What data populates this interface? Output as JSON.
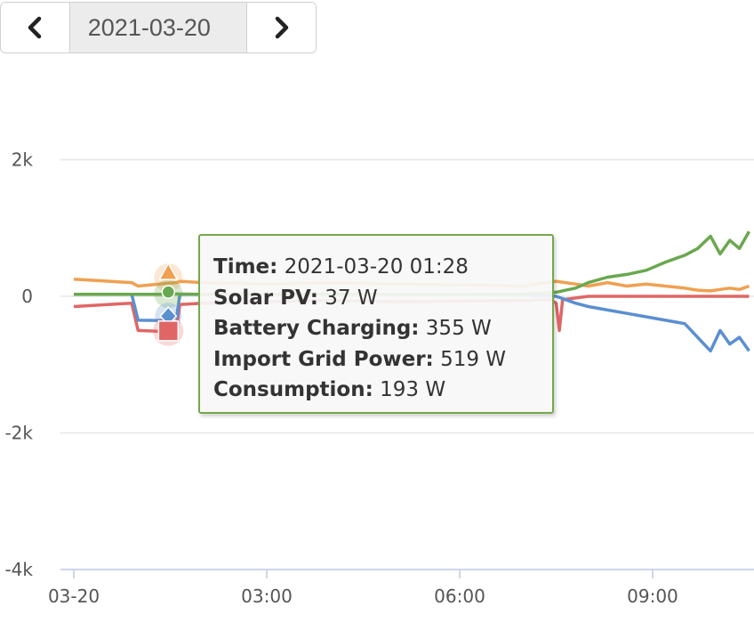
{
  "date_nav": {
    "prev_icon": "chevron-left-icon",
    "date_value": "2021-03-20",
    "next_icon": "chevron-right-icon"
  },
  "colors": {
    "solar": "#6aa84f",
    "battery": "#5b8fd0",
    "grid": "#e06666",
    "consumption": "#f0a050",
    "tooltip_border": "#74a94b",
    "grid_line": "#e6e6e6",
    "axis_line": "#ccd6eb"
  },
  "tooltip": {
    "time_label": "Time:",
    "time_value": "2021-03-20 01:28",
    "solar_label": "Solar PV:",
    "solar_value": "37 W",
    "battery_label": "Battery Charging:",
    "battery_value": "355 W",
    "grid_label": "Import Grid Power:",
    "grid_value": "519 W",
    "consumption_label": "Consumption:",
    "consumption_value": "193 W"
  },
  "chart_data": {
    "type": "line",
    "y_ticks": [
      "2k",
      "0",
      "-2k",
      "-4k"
    ],
    "x_ticks": [
      "03-20",
      "03:00",
      "06:00",
      "09:00"
    ],
    "ylim": [
      -4000,
      2000
    ],
    "xlim_hours": [
      0,
      10.5
    ],
    "grid": true,
    "series": [
      {
        "key": "solar",
        "values": [
          [
            0,
            30
          ],
          [
            1,
            30
          ],
          [
            1.4,
            30
          ],
          [
            1.47,
            37
          ],
          [
            2,
            30
          ],
          [
            3,
            30
          ],
          [
            4,
            30
          ],
          [
            5,
            30
          ],
          [
            6,
            30
          ],
          [
            7,
            30
          ],
          [
            7.5,
            60
          ],
          [
            7.8,
            120
          ],
          [
            8,
            200
          ],
          [
            8.3,
            280
          ],
          [
            8.6,
            320
          ],
          [
            8.9,
            380
          ],
          [
            9.2,
            500
          ],
          [
            9.5,
            600
          ],
          [
            9.7,
            700
          ],
          [
            9.9,
            880
          ],
          [
            10.05,
            620
          ],
          [
            10.2,
            820
          ],
          [
            10.35,
            700
          ],
          [
            10.5,
            950
          ]
        ]
      },
      {
        "key": "battery",
        "values": [
          [
            0,
            30
          ],
          [
            0.9,
            30
          ],
          [
            1.0,
            -350
          ],
          [
            1.47,
            -355
          ],
          [
            1.6,
            -300
          ],
          [
            1.65,
            30
          ],
          [
            2,
            30
          ],
          [
            3,
            30
          ],
          [
            4,
            30
          ],
          [
            5,
            30
          ],
          [
            6,
            30
          ],
          [
            7,
            20
          ],
          [
            7.5,
            0
          ],
          [
            7.8,
            -100
          ],
          [
            8,
            -150
          ],
          [
            8.3,
            -200
          ],
          [
            8.6,
            -250
          ],
          [
            8.9,
            -300
          ],
          [
            9.2,
            -350
          ],
          [
            9.5,
            -400
          ],
          [
            9.7,
            -600
          ],
          [
            9.9,
            -800
          ],
          [
            10.05,
            -500
          ],
          [
            10.2,
            -700
          ],
          [
            10.35,
            -600
          ],
          [
            10.5,
            -800
          ]
        ]
      },
      {
        "key": "grid",
        "values": [
          [
            0,
            -150
          ],
          [
            0.9,
            -100
          ],
          [
            1.0,
            -500
          ],
          [
            1.47,
            -519
          ],
          [
            1.6,
            -450
          ],
          [
            1.65,
            -120
          ],
          [
            2,
            -100
          ],
          [
            3,
            -80
          ],
          [
            4,
            -60
          ],
          [
            5,
            -80
          ],
          [
            6,
            -70
          ],
          [
            7,
            -60
          ],
          [
            7.4,
            -50
          ],
          [
            7.5,
            -100
          ],
          [
            7.55,
            -500
          ],
          [
            7.6,
            -50
          ],
          [
            8,
            0
          ],
          [
            9,
            0
          ],
          [
            10,
            0
          ],
          [
            10.5,
            0
          ]
        ]
      },
      {
        "key": "consumption",
        "values": [
          [
            0,
            250
          ],
          [
            0.9,
            200
          ],
          [
            1.0,
            150
          ],
          [
            1.47,
            193
          ],
          [
            1.6,
            200
          ],
          [
            1.65,
            220
          ],
          [
            2,
            200
          ],
          [
            3,
            180
          ],
          [
            4,
            200
          ],
          [
            5,
            180
          ],
          [
            6,
            170
          ],
          [
            7,
            150
          ],
          [
            7.5,
            220
          ],
          [
            7.8,
            180
          ],
          [
            8,
            150
          ],
          [
            8.3,
            200
          ],
          [
            8.6,
            150
          ],
          [
            8.9,
            180
          ],
          [
            9.2,
            150
          ],
          [
            9.5,
            120
          ],
          [
            9.7,
            90
          ],
          [
            9.9,
            80
          ],
          [
            10.05,
            100
          ],
          [
            10.2,
            120
          ],
          [
            10.35,
            100
          ],
          [
            10.5,
            150
          ]
        ]
      }
    ],
    "hover_x_hours": 1.47
  }
}
